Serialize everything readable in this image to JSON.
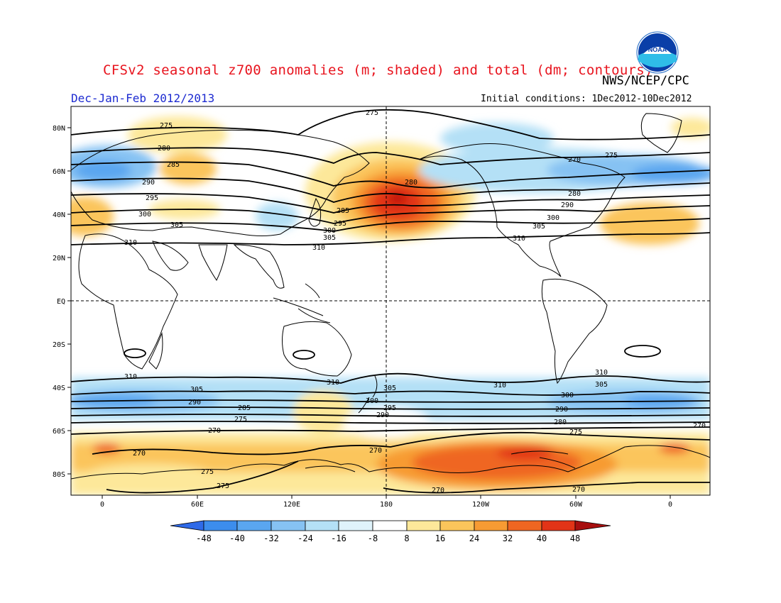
{
  "header": {
    "title": "CFSv2 seasonal z700 anomalies (m; shaded) and total (dm; contours)",
    "agency": "NWS/NCEP/CPC",
    "season": "Dec-Jan-Feb 2012/2013",
    "initial_conditions": "Initial conditions: 1Dec2012-10Dec2012",
    "logo_text": "NOAA"
  },
  "map": {
    "lat_labels": [
      "80N",
      "60N",
      "40N",
      "20N",
      "EQ",
      "20S",
      "40S",
      "60S",
      "80S"
    ],
    "lon_labels": [
      "0",
      "60E",
      "120E",
      "180",
      "120W",
      "60W",
      "0"
    ]
  },
  "colorbar": {
    "labels": [
      "-48",
      "-40",
      "-32",
      "-24",
      "-16",
      "-8",
      "8",
      "16",
      "24",
      "32",
      "40",
      "48"
    ],
    "colors": [
      "#2f6ae8",
      "#3c8ded",
      "#5aa6f0",
      "#86c2f3",
      "#b4e0f6",
      "#ffffff",
      "#fde89a",
      "#fbc55b",
      "#f79b33",
      "#ef6621",
      "#e23417",
      "#c4140f",
      "#a70f0f"
    ]
  },
  "contours": {
    "labels": [
      "275",
      "280",
      "285",
      "290",
      "295",
      "300",
      "305",
      "310",
      "270"
    ]
  }
}
